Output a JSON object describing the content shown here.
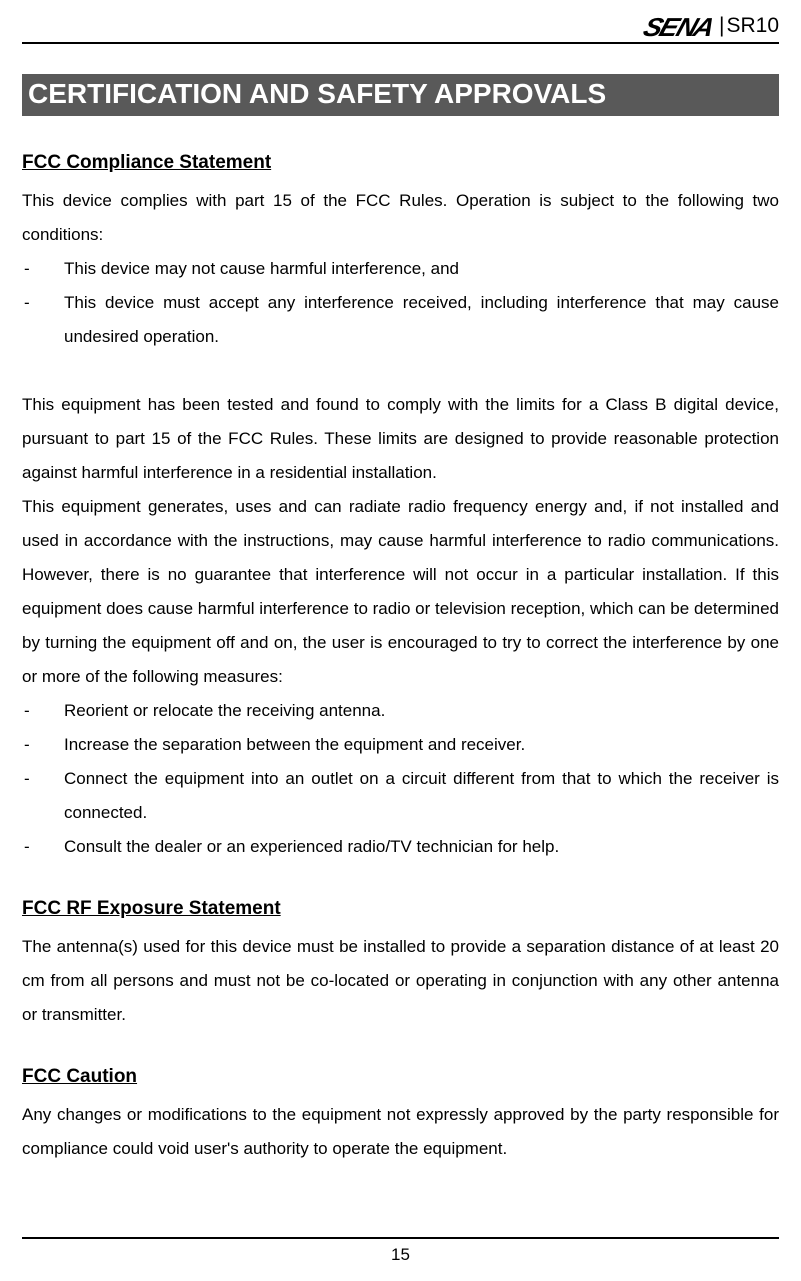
{
  "header": {
    "logo_text": "SENA",
    "separator": "|",
    "model": "SR10"
  },
  "section_title": "CERTIFICATION AND SAFETY APPROVALS",
  "sections": [
    {
      "heading": "FCC Compliance Statement",
      "intro": "This device complies with part 15 of the FCC Rules. Operation is subject to the following two conditions:",
      "bullets_a": [
        "This device may not cause harmful interference, and",
        "This device must accept any interference received, including interference that may cause undesired operation."
      ],
      "para1": "This equipment has been tested and found to comply with the limits for a Class B digital device, pursuant to part 15 of the FCC Rules. These limits are designed to provide reasonable protection against harmful interference in a residential installation.",
      "para2": "This equipment generates, uses and can radiate radio frequency energy and, if not installed and used in accordance with the instructions, may cause harmful interference to radio communications. However, there is no guarantee that interference will not occur in a particular installation. If this equipment does cause harmful interference to radio or television reception, which can be determined by turning the equipment off and on, the user is encouraged to try to correct the interference by one or more of the following measures:",
      "bullets_b": [
        "Reorient or relocate the receiving antenna.",
        "Increase the separation between the equipment and receiver.",
        "Connect the equipment into an outlet on a circuit different from that to which the receiver is connected.",
        "Consult the dealer or an experienced radio/TV technician for help."
      ]
    },
    {
      "heading": "FCC RF Exposure Statement",
      "body": "The antenna(s) used for this device must be installed to provide a separation distance of at least 20 cm from all persons and must not be co-located or operating in conjunction with any other antenna or transmitter."
    },
    {
      "heading": "FCC Caution",
      "body": "Any changes or modifications to the equipment not expressly approved by the party responsible for compliance could void user's authority to operate the equipment."
    }
  ],
  "footer": {
    "page_number": "15"
  },
  "bullet_dash": "-",
  "colors": {
    "section_title_bg": "#595959",
    "section_title_fg": "#ffffff",
    "text": "#000000",
    "page_bg": "#ffffff",
    "rule": "#000000"
  }
}
